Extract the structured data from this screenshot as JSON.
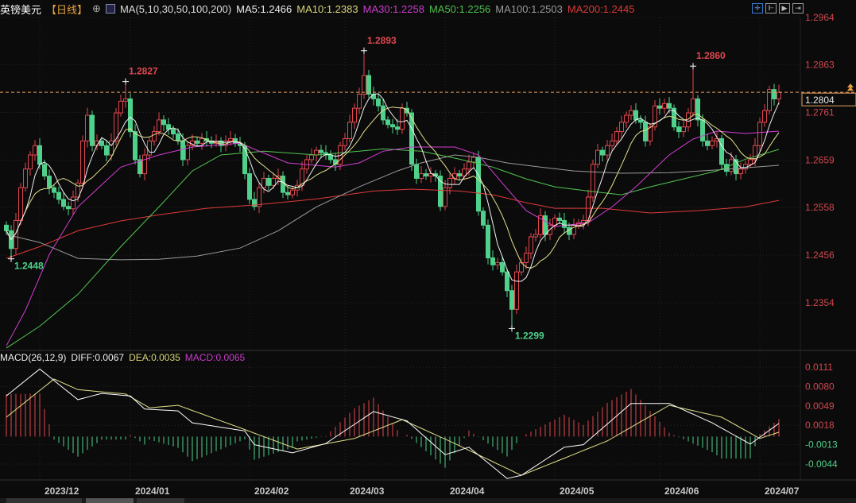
{
  "header": {
    "symbol": "英镑美元",
    "period": "【日线】",
    "ma_title": "MA(5,10,30,50,100,200)",
    "ma5": "MA5:1.2466",
    "ma10": "MA10:1.2383",
    "ma30": "MA30:1.2258",
    "ma50": "MA50:1.2256",
    "ma100": "MA100:1.2503",
    "ma200": "MA200:1.2445"
  },
  "toolbar": [
    {
      "icon": "crosshair-icon",
      "glyph": "✛"
    },
    {
      "icon": "zoom-range-icon",
      "glyph": "⊩"
    },
    {
      "icon": "play-forward-icon",
      "glyph": "▶"
    },
    {
      "icon": "jump-latest-icon",
      "glyph": "⇥"
    }
  ],
  "macd_header": {
    "title": "MACD(26,12,9)",
    "diff": "DIFF:0.0067",
    "dea": "DEA:0.0035",
    "macd": "MACD:0.0065"
  },
  "colors": {
    "up": "#e0474f",
    "down": "#4fd18b",
    "ma5": "#f0f0f0",
    "ma10": "#e3e08a",
    "ma30": "#d33ed3",
    "ma50": "#52c552",
    "ma100": "#9a9a9a",
    "ma200": "#e03a3a",
    "diff": "#ffffff",
    "dea": "#e3e08a",
    "current": "#e8a060"
  },
  "chart_data": {
    "type": "candlestick",
    "price_ticks": [
      "1.2964",
      "1.2863",
      "1.2761",
      "1.2659",
      "1.2558",
      "1.2456",
      "1.2354"
    ],
    "macd_ticks": [
      "0.0111",
      "0.0080",
      "0.0049",
      "0.0018",
      "-0.0013",
      "-0.0044"
    ],
    "x_labels": [
      {
        "label": "2023/12",
        "index": 8
      },
      {
        "label": "2024/01",
        "index": 27
      },
      {
        "label": "2024/02",
        "index": 52
      },
      {
        "label": "2024/03",
        "index": 72
      },
      {
        "label": "2024/04",
        "index": 93
      },
      {
        "label": "2024/05",
        "index": 116
      },
      {
        "label": "2024/06",
        "index": 138
      },
      {
        "label": "2024/07",
        "index": 159
      }
    ],
    "current_price": "1.2804",
    "first_open": 1.252,
    "close": [
      1.2508,
      1.247,
      1.253,
      1.26,
      1.264,
      1.267,
      1.269,
      1.265,
      1.2625,
      1.26,
      1.259,
      1.2575,
      1.256,
      1.2555,
      1.258,
      1.261,
      1.27,
      1.2755,
      1.269,
      1.27,
      1.269,
      1.267,
      1.27,
      1.276,
      1.2785,
      1.279,
      1.272,
      1.266,
      1.263,
      1.267,
      1.27,
      1.272,
      1.2745,
      1.2735,
      1.2725,
      1.2715,
      1.27,
      1.266,
      1.269,
      1.27,
      1.2695,
      1.2705,
      1.27,
      1.2695,
      1.27,
      1.269,
      1.27,
      1.2705,
      1.2695,
      1.269,
      1.263,
      1.2575,
      1.256,
      1.26,
      1.262,
      1.2605,
      1.262,
      1.2625,
      1.259,
      1.2585,
      1.2595,
      1.2605,
      1.264,
      1.266,
      1.267,
      1.268,
      1.2675,
      1.267,
      1.266,
      1.265,
      1.269,
      1.2705,
      1.274,
      1.277,
      1.28,
      1.284,
      1.28,
      1.279,
      1.2775,
      1.2745,
      1.2735,
      1.273,
      1.2725,
      1.277,
      1.276,
      1.265,
      1.262,
      1.263,
      1.2625,
      1.263,
      1.2625,
      1.256,
      1.26,
      1.262,
      1.263,
      1.2625,
      1.264,
      1.2655,
      1.2665,
      1.255,
      1.252,
      1.245,
      1.2435,
      1.244,
      1.242,
      1.238,
      1.234,
      1.242,
      1.244,
      1.246,
      1.2495,
      1.25,
      1.254,
      1.25,
      1.252,
      1.2535,
      1.253,
      1.2515,
      1.25,
      1.252,
      1.2525,
      1.253,
      1.258,
      1.265,
      1.268,
      1.267,
      1.269,
      1.27,
      1.272,
      1.274,
      1.2755,
      1.2765,
      1.2745,
      1.274,
      1.27,
      1.273,
      1.2775,
      1.277,
      1.278,
      1.277,
      1.273,
      1.272,
      1.273,
      1.276,
      1.279,
      1.2745,
      1.27,
      1.269,
      1.27,
      1.2705,
      1.265,
      1.2635,
      1.266,
      1.263,
      1.264,
      1.265,
      1.266,
      1.269,
      1.274,
      1.2765,
      1.281,
      1.279,
      1.2804
    ],
    "high_marks": [
      {
        "index": 25,
        "value": 1.2827,
        "label": "1.2827"
      },
      {
        "index": 75,
        "value": 1.2893,
        "label": "1.2893"
      },
      {
        "index": 144,
        "value": 1.286,
        "label": "1.2860"
      }
    ],
    "low_marks": [
      {
        "index": 1,
        "value": 1.2448,
        "label": "1.2448"
      },
      {
        "index": 106,
        "value": 1.2299,
        "label": "1.2299"
      }
    ],
    "ma_series": {
      "ma30": [
        [
          0,
          1.2262
        ],
        [
          4,
          1.2338
        ],
        [
          9,
          1.2457
        ],
        [
          15,
          1.2559
        ],
        [
          24,
          1.2644
        ],
        [
          32,
          1.267
        ],
        [
          39,
          1.2687
        ],
        [
          49,
          1.2695
        ],
        [
          59,
          1.2653
        ],
        [
          69,
          1.2644
        ],
        [
          74,
          1.2653
        ],
        [
          79,
          1.2678
        ],
        [
          85,
          1.2687
        ],
        [
          94,
          1.2687
        ],
        [
          99,
          1.267
        ],
        [
          104,
          1.261
        ],
        [
          109,
          1.2551
        ],
        [
          115,
          1.2517
        ],
        [
          122,
          1.2525
        ],
        [
          127,
          1.2559
        ],
        [
          132,
          1.2602
        ],
        [
          139,
          1.267
        ],
        [
          144,
          1.2704
        ],
        [
          149,
          1.2721
        ],
        [
          155,
          1.2716
        ],
        [
          162,
          1.2721
        ]
      ],
      "ma50": [
        [
          0,
          1.2257
        ],
        [
          7,
          1.2304
        ],
        [
          15,
          1.2372
        ],
        [
          24,
          1.2474
        ],
        [
          32,
          1.2559
        ],
        [
          39,
          1.2636
        ],
        [
          45,
          1.267
        ],
        [
          54,
          1.2678
        ],
        [
          65,
          1.267
        ],
        [
          74,
          1.2678
        ],
        [
          79,
          1.2683
        ],
        [
          87,
          1.2678
        ],
        [
          95,
          1.2661
        ],
        [
          102,
          1.2644
        ],
        [
          109,
          1.2619
        ],
        [
          115,
          1.2602
        ],
        [
          122,
          1.2593
        ],
        [
          129,
          1.2585
        ],
        [
          135,
          1.2602
        ],
        [
          142,
          1.2619
        ],
        [
          149,
          1.2636
        ],
        [
          155,
          1.2661
        ],
        [
          162,
          1.2682
        ]
      ],
      "ma100": [
        [
          0,
          1.25
        ],
        [
          7,
          1.2483
        ],
        [
          15,
          1.2449
        ],
        [
          24,
          1.2446
        ],
        [
          32,
          1.2447
        ],
        [
          40,
          1.2454
        ],
        [
          49,
          1.2471
        ],
        [
          57,
          1.2508
        ],
        [
          65,
          1.2559
        ],
        [
          74,
          1.2602
        ],
        [
          82,
          1.2636
        ],
        [
          87,
          1.2653
        ],
        [
          94,
          1.267
        ],
        [
          99,
          1.2665
        ],
        [
          105,
          1.2653
        ],
        [
          112,
          1.2644
        ],
        [
          119,
          1.2636
        ],
        [
          129,
          1.2631
        ],
        [
          139,
          1.2632
        ],
        [
          149,
          1.2638
        ],
        [
          162,
          1.2648
        ]
      ],
      "ma200": [
        [
          0,
          1.2449
        ],
        [
          7,
          1.2474
        ],
        [
          15,
          1.2508
        ],
        [
          24,
          1.2529
        ],
        [
          32,
          1.2542
        ],
        [
          42,
          1.2556
        ],
        [
          52,
          1.2563
        ],
        [
          65,
          1.2576
        ],
        [
          77,
          1.2593
        ],
        [
          85,
          1.2597
        ],
        [
          95,
          1.2593
        ],
        [
          102,
          1.2585
        ],
        [
          109,
          1.2568
        ],
        [
          115,
          1.2556
        ],
        [
          125,
          1.2556
        ],
        [
          135,
          1.2546
        ],
        [
          145,
          1.2551
        ],
        [
          155,
          1.2559
        ],
        [
          162,
          1.2573
        ]
      ]
    },
    "macd": {
      "diff": [
        [
          0,
          0.0065
        ],
        [
          7,
          0.0108
        ],
        [
          15,
          0.0059
        ],
        [
          20,
          0.0069
        ],
        [
          26,
          0.0065
        ],
        [
          29,
          0.0044
        ],
        [
          36,
          0.0041
        ],
        [
          39,
          0.0022
        ],
        [
          50,
          0.0009
        ],
        [
          52,
          -0.0013
        ],
        [
          60,
          -0.0026
        ],
        [
          67,
          -0.0011
        ],
        [
          77,
          0.004
        ],
        [
          84,
          0.0025
        ],
        [
          92,
          -0.0029
        ],
        [
          97,
          -0.0017
        ],
        [
          105,
          -0.0067
        ],
        [
          108,
          -0.0062
        ],
        [
          117,
          -0.0017
        ],
        [
          121,
          -0.0013
        ],
        [
          131,
          0.0053
        ],
        [
          139,
          0.0053
        ],
        [
          148,
          0.0022
        ],
        [
          156,
          -0.0012
        ],
        [
          162,
          0.0021
        ]
      ],
      "dea": [
        [
          0,
          0.0031
        ],
        [
          10,
          0.0092
        ],
        [
          15,
          0.0075
        ],
        [
          25,
          0.0068
        ],
        [
          30,
          0.0046
        ],
        [
          36,
          0.005
        ],
        [
          49,
          0.0014
        ],
        [
          61,
          -0.002
        ],
        [
          73,
          -0.0003
        ],
        [
          83,
          0.0027
        ],
        [
          94,
          -0.0011
        ],
        [
          108,
          -0.0062
        ],
        [
          126,
          -0.0007
        ],
        [
          139,
          0.005
        ],
        [
          150,
          0.0031
        ],
        [
          158,
          -0.0003
        ],
        [
          162,
          0.0007
        ]
      ]
    }
  }
}
